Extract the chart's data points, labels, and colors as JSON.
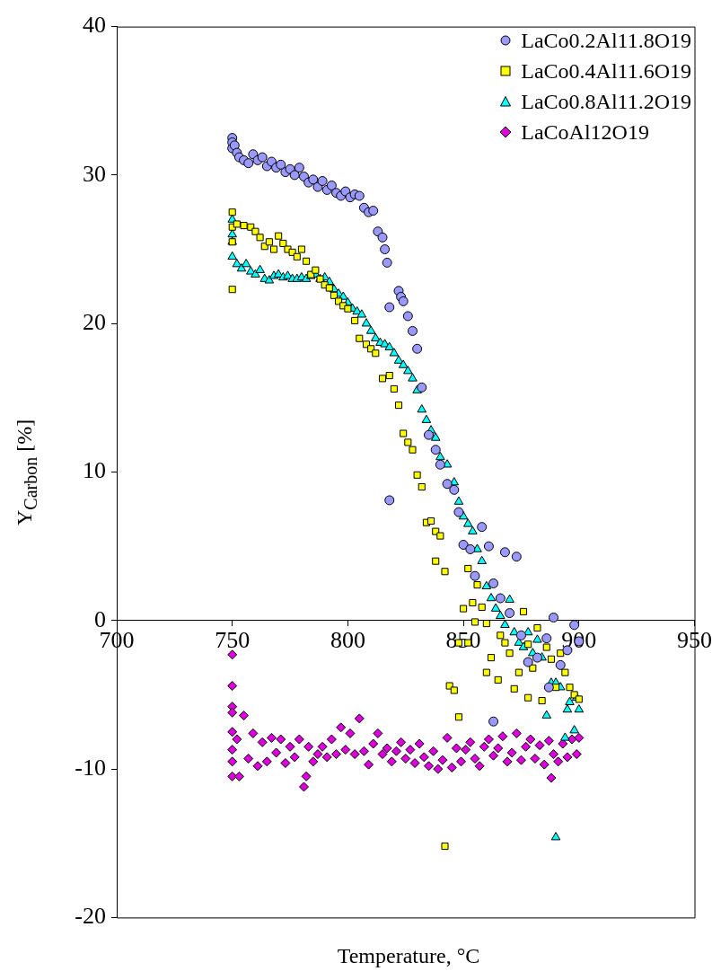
{
  "chart_data": {
    "type": "scatter",
    "xlabel": "Temperature, °C",
    "ylabel": "Y$_{Carbon}$ [%]",
    "xlim": [
      700,
      950
    ],
    "xticks": [
      700,
      750,
      800,
      850,
      900,
      950
    ],
    "ylim": [
      -20,
      40
    ],
    "yticks": [
      -20,
      -10,
      0,
      10,
      20,
      30,
      40
    ],
    "grid": false,
    "legend": "top right",
    "series": [
      {
        "name": "LaCo0.2Al11.8O19",
        "color": "#9999ff",
        "marker": "circle",
        "x": [
          750,
          750,
          750,
          751,
          752,
          753,
          755,
          757,
          759,
          761,
          763,
          765,
          767,
          769,
          771,
          773,
          775,
          777,
          779,
          781,
          783,
          785,
          787,
          789,
          791,
          793,
          795,
          797,
          799,
          801,
          803,
          805,
          807,
          809,
          811,
          813,
          815,
          816,
          817,
          818,
          818,
          822,
          823,
          824,
          826,
          828,
          830,
          832,
          835,
          838,
          840,
          843,
          846,
          848,
          850,
          853,
          855,
          858,
          861,
          863,
          863,
          866,
          868,
          870,
          873,
          875,
          878,
          882,
          886,
          887,
          889,
          892,
          895,
          898,
          900
        ],
        "values": [
          32.5,
          32.2,
          31.8,
          32.0,
          31.5,
          31.2,
          31.0,
          30.8,
          31.4,
          31.0,
          31.2,
          30.6,
          30.9,
          30.5,
          30.7,
          30.2,
          30.4,
          30.0,
          30.5,
          29.9,
          29.5,
          29.7,
          29.2,
          29.6,
          29.0,
          29.3,
          28.8,
          28.6,
          28.9,
          28.5,
          28.7,
          28.6,
          27.8,
          27.5,
          27.6,
          26.2,
          25.8,
          25.0,
          24.1,
          8.1,
          21.1,
          22.2,
          21.8,
          21.5,
          20.5,
          19.5,
          18.3,
          15.7,
          12.5,
          11.5,
          10.5,
          9.2,
          8.8,
          7.3,
          5.1,
          4.8,
          3.0,
          6.3,
          5.0,
          2.5,
          -6.8,
          1.5,
          4.6,
          0.5,
          4.3,
          -1.0,
          -2.8,
          -2.5,
          -1.2,
          -4.5,
          0.2,
          -3.0,
          -2.0,
          -0.3,
          -1.4
        ]
      },
      {
        "name": "LaCo0.4Al11.6O19",
        "color": "#ffff00",
        "marker": "square",
        "x": [
          750,
          750,
          750,
          750,
          752,
          755,
          758,
          760,
          762,
          764,
          766,
          768,
          770,
          772,
          774,
          776,
          778,
          780,
          782,
          784,
          786,
          788,
          790,
          792,
          794,
          796,
          798,
          800,
          803,
          805,
          808,
          810,
          812,
          815,
          818,
          820,
          822,
          824,
          826,
          828,
          830,
          832,
          834,
          836,
          838,
          838,
          840,
          842,
          842,
          844,
          846,
          848,
          848,
          850,
          852,
          852,
          854,
          855,
          856,
          858,
          860,
          860,
          862,
          865,
          866,
          868,
          870,
          872,
          874,
          876,
          878,
          878,
          880,
          882,
          884,
          886,
          888,
          890,
          892,
          894,
          896,
          898,
          900
        ],
        "values": [
          27.5,
          26.5,
          25.5,
          22.3,
          26.7,
          26.6,
          26.5,
          26.2,
          25.8,
          25.2,
          25.5,
          25.0,
          25.9,
          25.4,
          25.0,
          24.8,
          24.5,
          25.0,
          24.2,
          23.3,
          23.6,
          23.0,
          22.6,
          22.4,
          21.9,
          21.5,
          21.2,
          21.0,
          20.2,
          19.0,
          18.6,
          18.3,
          18.0,
          16.3,
          16.5,
          15.6,
          14.5,
          12.6,
          12.0,
          11.5,
          9.8,
          9.0,
          6.6,
          6.7,
          6.0,
          4.0,
          5.7,
          3.3,
          -15.2,
          -4.4,
          -4.7,
          -1.5,
          -6.5,
          0.8,
          3.5,
          -1.5,
          1.2,
          -0.1,
          2.4,
          0.9,
          -0.2,
          -3.5,
          -2.5,
          -4.0,
          -1.0,
          -1.5,
          -2.2,
          -4.6,
          -3.5,
          0.6,
          -1.6,
          -5.2,
          -3.2,
          -0.5,
          -5.4,
          -1.8,
          -2.6,
          -4.5,
          -2.2,
          -3.5,
          -4.5,
          -5.0,
          -5.3
        ]
      },
      {
        "name": "LaCo0.8Al11.2O19",
        "color": "#00ffff",
        "marker": "triangle",
        "x": [
          750,
          750,
          750,
          750,
          752,
          754,
          756,
          758,
          760,
          762,
          764,
          766,
          768,
          770,
          772,
          774,
          776,
          778,
          780,
          782,
          784,
          786,
          788,
          790,
          792,
          794,
          796,
          798,
          800,
          802,
          804,
          806,
          808,
          810,
          812,
          814,
          816,
          818,
          820,
          822,
          824,
          826,
          828,
          830,
          832,
          834,
          836,
          838,
          840,
          843,
          846,
          848,
          850,
          852,
          854,
          856,
          858,
          860,
          862,
          864,
          866,
          868,
          870,
          872,
          874,
          876,
          878,
          880,
          882,
          884,
          886,
          888,
          890,
          890,
          892,
          894,
          895,
          896,
          898,
          899,
          900
        ],
        "values": [
          27.0,
          26.0,
          25.5,
          24.5,
          24.0,
          23.7,
          24.0,
          23.5,
          23.3,
          23.6,
          23.0,
          22.9,
          23.2,
          23.3,
          23.1,
          23.2,
          23.0,
          23.0,
          23.1,
          23.0,
          23.2,
          23.3,
          23.0,
          23.1,
          22.8,
          22.3,
          22.0,
          21.8,
          21.4,
          21.0,
          20.8,
          20.6,
          20.0,
          19.5,
          19.0,
          18.7,
          18.6,
          18.4,
          18.0,
          17.5,
          17.2,
          16.8,
          16.3,
          15.5,
          14.2,
          13.5,
          12.8,
          12.3,
          11.0,
          10.5,
          9.3,
          8.0,
          7.0,
          6.5,
          6.0,
          4.8,
          4.0,
          2.3,
          1.5,
          0.8,
          0.3,
          -0.3,
          1.4,
          -0.8,
          -1.5,
          -1.8,
          -0.8,
          -2.2,
          -1.3,
          -2.5,
          -6.4,
          -4.2,
          -4.2,
          -14.6,
          -4.5,
          -7.9,
          -6.0,
          -5.5,
          -7.4,
          -5.2,
          -6.0
        ]
      },
      {
        "name": "LaCoAl12O19",
        "color": "#dd00dd",
        "marker": "diamond",
        "x": [
          750,
          750,
          750,
          750,
          750,
          750,
          750,
          750,
          752,
          753,
          755,
          757,
          759,
          761,
          763,
          765,
          767,
          769,
          771,
          773,
          775,
          777,
          779,
          781,
          782,
          783,
          785,
          787,
          789,
          791,
          793,
          795,
          797,
          799,
          801,
          803,
          805,
          807,
          809,
          811,
          813,
          815,
          817,
          819,
          821,
          823,
          825,
          827,
          829,
          831,
          833,
          835,
          837,
          839,
          841,
          843,
          845,
          847,
          849,
          851,
          853,
          855,
          857,
          859,
          861,
          863,
          865,
          867,
          869,
          871,
          873,
          875,
          877,
          879,
          881,
          883,
          885,
          887,
          888,
          889,
          891,
          893,
          895,
          897,
          899,
          900
        ],
        "values": [
          -2.3,
          -4.4,
          -5.8,
          -7.5,
          -8.7,
          -9.5,
          -10.5,
          -6.2,
          -8.0,
          -10.5,
          -6.4,
          -9.3,
          -7.6,
          -9.8,
          -8.2,
          -9.5,
          -7.9,
          -8.9,
          -8.0,
          -9.6,
          -8.5,
          -9.2,
          -8.0,
          -11.2,
          -10.5,
          -8.5,
          -9.5,
          -9.0,
          -8.5,
          -9.2,
          -8.0,
          -9.0,
          -7.2,
          -8.7,
          -7.6,
          -9.0,
          -6.6,
          -8.8,
          -9.7,
          -8.3,
          -7.6,
          -9.0,
          -8.6,
          -9.5,
          -8.8,
          -8.2,
          -9.3,
          -8.7,
          -9.6,
          -8.3,
          -9.2,
          -9.8,
          -8.8,
          -10.0,
          -9.4,
          -7.9,
          -9.9,
          -8.6,
          -9.5,
          -8.7,
          -8.2,
          -9.3,
          -9.8,
          -8.5,
          -8.0,
          -9.1,
          -8.6,
          -7.8,
          -9.5,
          -8.9,
          -7.6,
          -9.4,
          -8.5,
          -8.0,
          -9.3,
          -8.4,
          -9.7,
          -8.1,
          -10.6,
          -9.0,
          -9.5,
          -8.3,
          -9.2,
          -8.0,
          -9.0,
          -7.9
        ]
      }
    ]
  }
}
